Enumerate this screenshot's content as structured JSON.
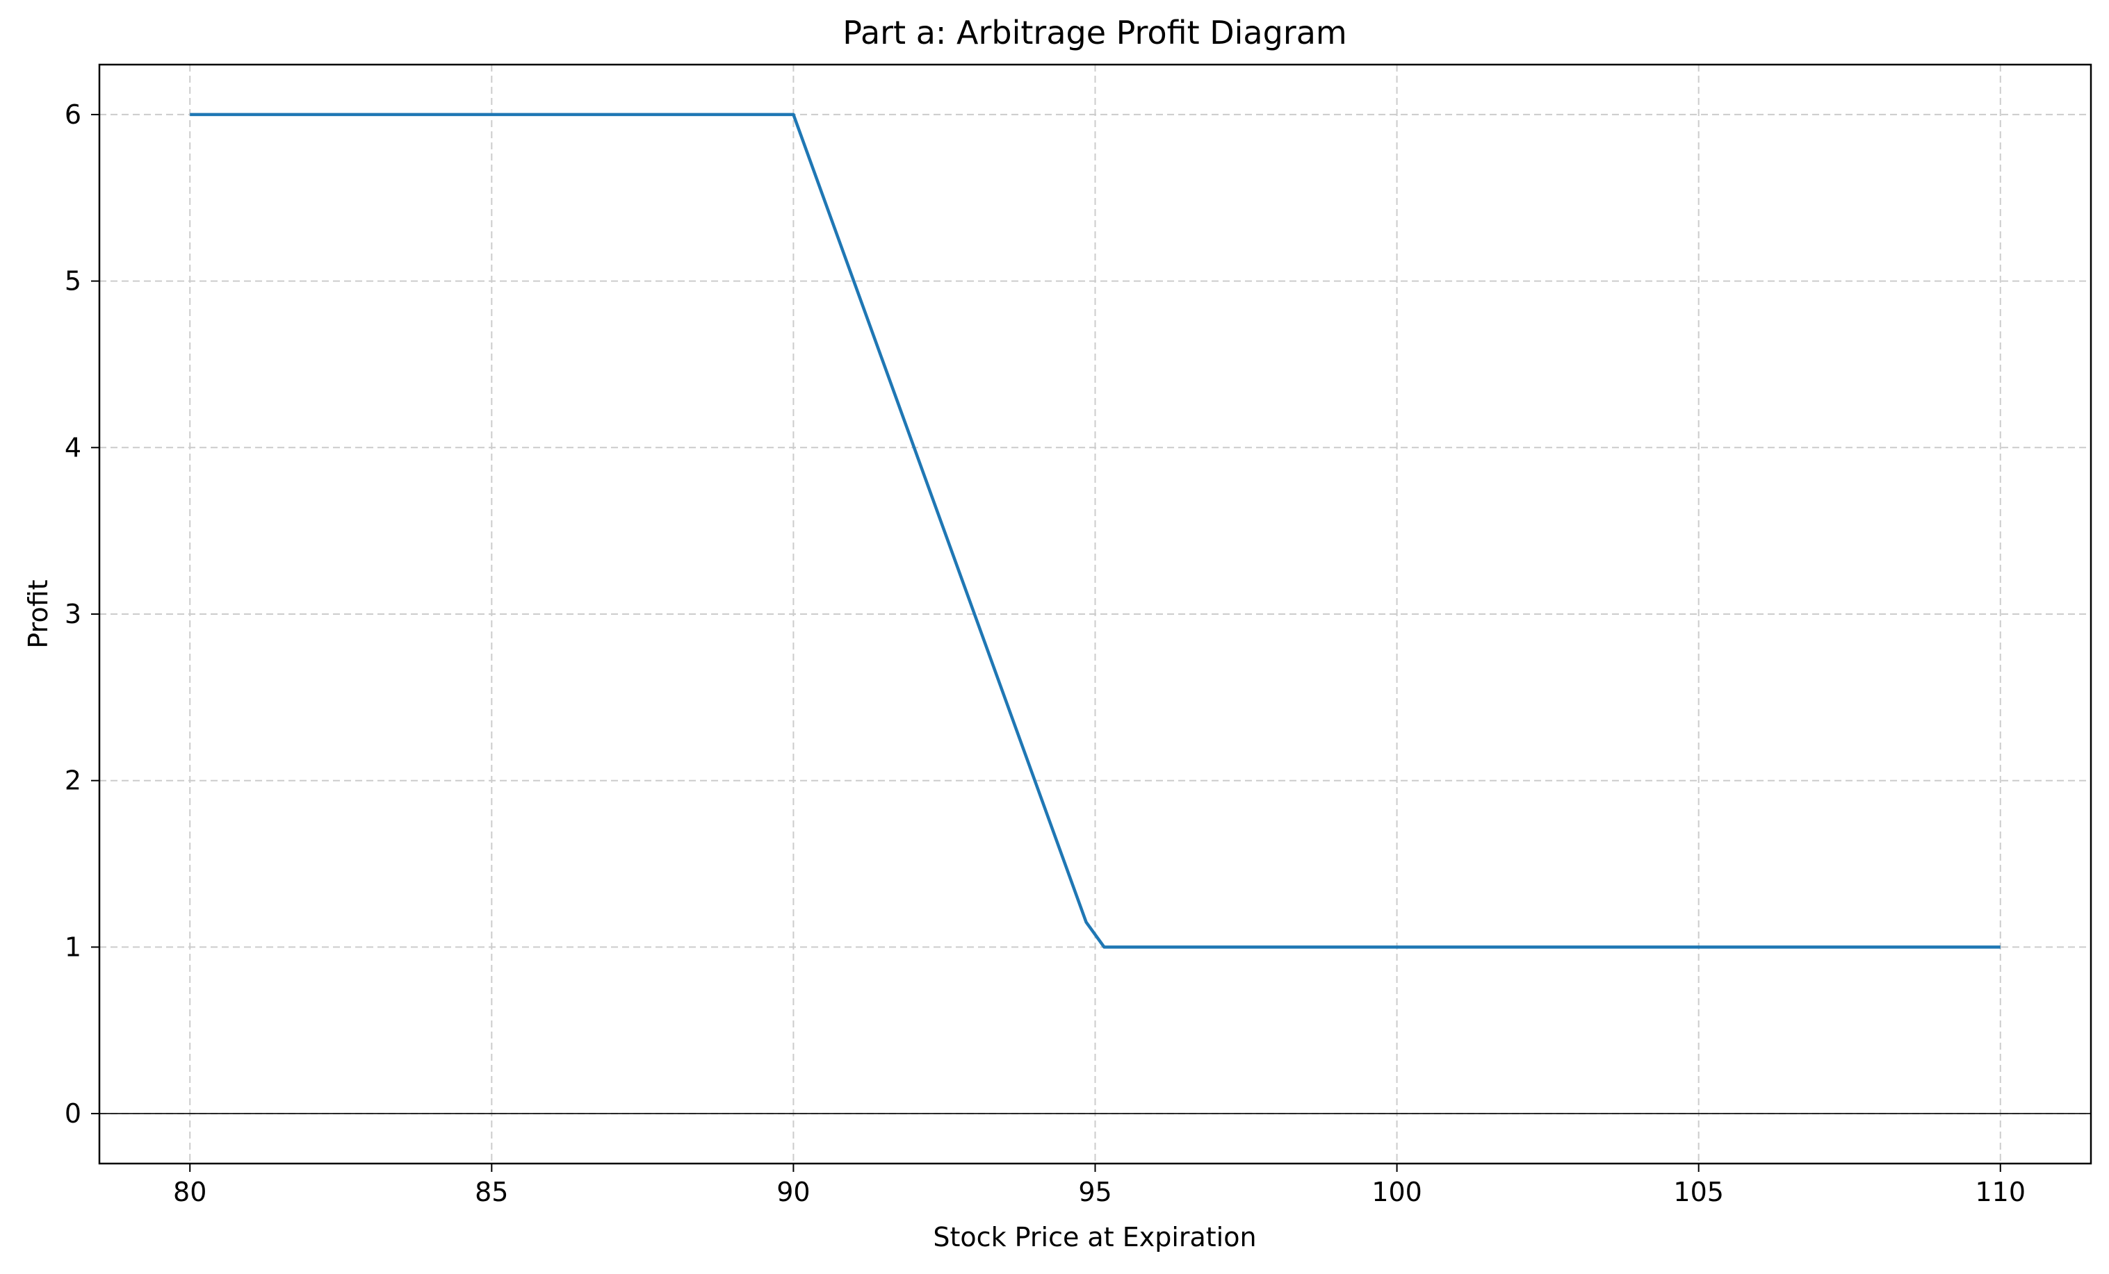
{
  "chart_data": {
    "type": "line",
    "title": "Part a: Arbitrage Profit Diagram",
    "xlabel": "Stock Price at Expiration",
    "ylabel": "Profit",
    "xlim": [
      78.5,
      111.5
    ],
    "ylim": [
      -0.3,
      6.3
    ],
    "x_ticks": [
      80,
      85,
      90,
      95,
      100,
      105,
      110
    ],
    "y_ticks": [
      0,
      1,
      2,
      3,
      4,
      5,
      6
    ],
    "x_tick_labels": [
      "80",
      "85",
      "90",
      "95",
      "100",
      "105",
      "110"
    ],
    "y_tick_labels": [
      "0",
      "1",
      "2",
      "3",
      "4",
      "5",
      "6"
    ],
    "grid": true,
    "zero_line": 0,
    "series": [
      {
        "color": "#1f77b4",
        "x": [
          80,
          90,
          94.85,
          95.15,
          110
        ],
        "y": [
          6,
          6,
          1.15,
          1,
          1
        ]
      }
    ]
  }
}
